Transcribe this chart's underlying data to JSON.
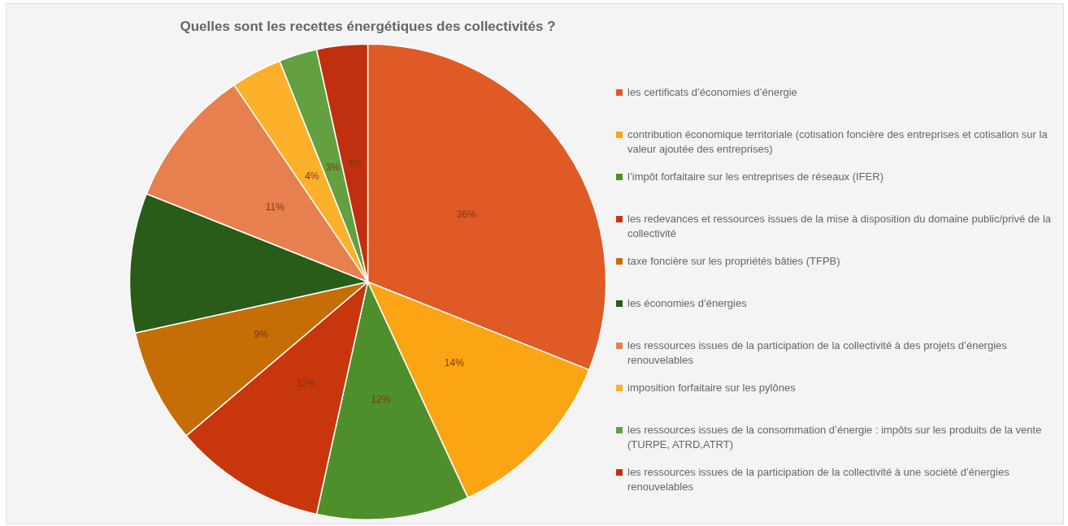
{
  "chart_data": {
    "type": "pie",
    "title": "Quelles sont les recettes énergétiques des collectivités ?",
    "categories": [
      "les certificats d’économies d’énergie",
      "contribution économique territoriale (cotisation foncière des entreprises et cotisation sur la valeur ajoutée des entreprises)",
      "l’impôt forfaitaire sur les entreprises de réseaux (IFER)",
      "les redevances et ressources issues de la mise à disposition du domaine public/privé de la collectivité",
      "taxe foncière sur les propriétés bâties (TFPB)",
      "les économies d’énergies",
      "les ressources issues de la participation de la collectivité à des projets d’énergies renouvelables",
      "imposition forfaitaire sur les pylônes",
      "les ressources issues de la consommation d’énergie : impôts sur les produits de la vente (TURPE, ATRD,ATRT)",
      "les ressources issues de la participation de la collectivité à une société d’énergies renouvelables"
    ],
    "values": [
      36,
      14,
      12,
      12,
      9,
      11,
      11,
      4,
      3,
      4
    ],
    "value_labels": [
      "36%",
      "14%",
      "12%",
      "12%",
      "9%",
      null,
      "11%",
      "4%",
      "3%",
      "4%"
    ],
    "colors": [
      "#e05a25",
      "#fba515",
      "#4e8f2c",
      "#c8360e",
      "#c66e06",
      "#285c18",
      "#e7804e",
      "#fdb12a",
      "#62a040",
      "#c0300e"
    ],
    "legend": "right"
  }
}
